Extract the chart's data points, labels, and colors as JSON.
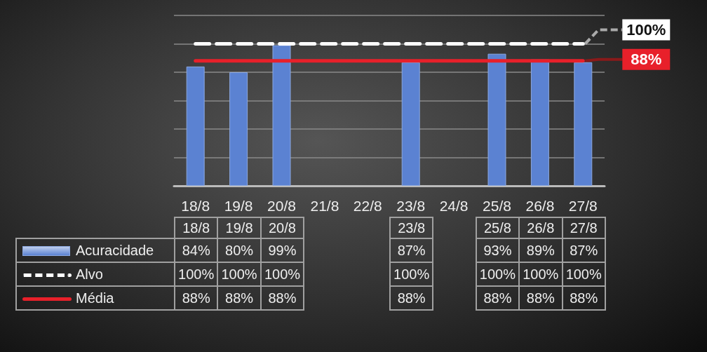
{
  "chart_data": {
    "type": "bar",
    "categories": [
      "18/8",
      "19/8",
      "20/8",
      "21/8",
      "22/8",
      "23/8",
      "24/8",
      "25/8",
      "26/8",
      "27/8"
    ],
    "series": [
      {
        "name": "Acuracidade",
        "color": "#5b82d2",
        "values": [
          84,
          80,
          99,
          null,
          null,
          87,
          null,
          93,
          89,
          87
        ],
        "value_labels": [
          "84%",
          "80%",
          "99%",
          null,
          null,
          "87%",
          null,
          "93%",
          "89%",
          "87%"
        ]
      },
      {
        "name": "Alvo",
        "type": "line",
        "color": "#ffffff",
        "line_style": "dashed",
        "values": [
          100,
          100,
          100,
          100,
          100,
          100,
          100,
          100,
          100,
          100
        ],
        "value_labels": [
          "100%",
          "100%",
          "100%",
          null,
          null,
          "100%",
          null,
          "100%",
          "100%",
          "100%"
        ]
      },
      {
        "name": "Média",
        "type": "line",
        "color": "#e8202a",
        "line_style": "solid",
        "values": [
          88,
          88,
          88,
          88,
          88,
          88,
          88,
          88,
          88,
          88
        ],
        "value_labels": [
          "88%",
          "88%",
          "88%",
          null,
          null,
          "88%",
          null,
          "88%",
          "88%",
          "88%"
        ]
      }
    ],
    "ylim": [
      0,
      120
    ],
    "yticks": [
      {
        "value": 0,
        "label": null
      },
      {
        "value": 20,
        "label": null
      },
      {
        "value": 40,
        "label": null
      },
      {
        "value": 60,
        "label": null
      },
      {
        "value": 80,
        "label": null
      },
      {
        "value": 100,
        "label": null
      },
      {
        "value": 120,
        "label": null
      }
    ],
    "tick_labels": "x",
    "grid": "y",
    "legend": "bottom",
    "annotations": [
      {
        "text": "100%",
        "x": "27/8",
        "y": 100
      },
      {
        "text": "88%",
        "x": "27/8",
        "y": 88
      }
    ]
  }
}
